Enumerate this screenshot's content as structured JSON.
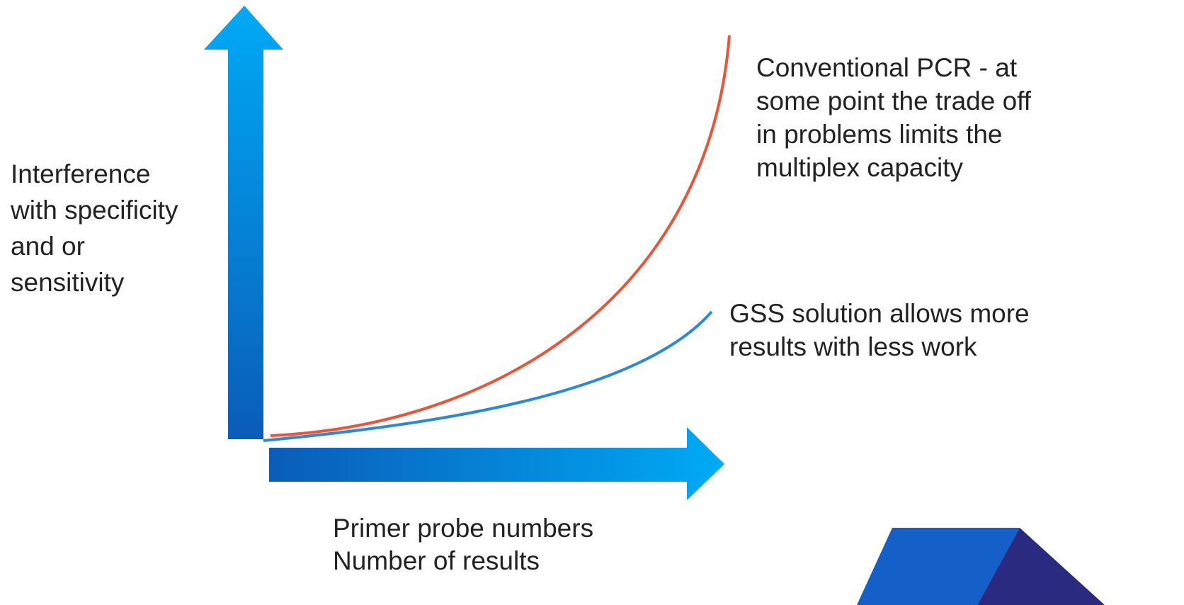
{
  "y_axis_label": [
    "Interference",
    "with specificity",
    "and or",
    "sensitivity"
  ],
  "x_axis_label": [
    "Primer probe numbers",
    "Number of results"
  ],
  "annotations": [
    {
      "lines": [
        "Conventional PCR - at",
        "some point the trade off",
        "in problems limits the",
        "multiplex capacity"
      ]
    },
    {
      "lines": [
        "GSS solution allows more",
        "results with less work"
      ]
    }
  ]
}
